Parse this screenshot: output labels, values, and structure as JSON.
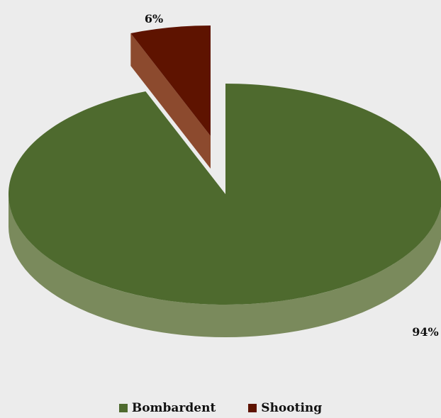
{
  "chart_data": {
    "type": "pie",
    "style": "3d-exploded",
    "series": [
      {
        "label": "Bombardent",
        "value": 94,
        "value_label": "94%",
        "color": "#4e6a2e",
        "side_color": "#7a8a5c"
      },
      {
        "label": "Shooting",
        "value": 6,
        "value_label": "6%",
        "color": "#5e1300",
        "side_color": "#8c4a2e"
      }
    ],
    "legend_position": "bottom"
  }
}
